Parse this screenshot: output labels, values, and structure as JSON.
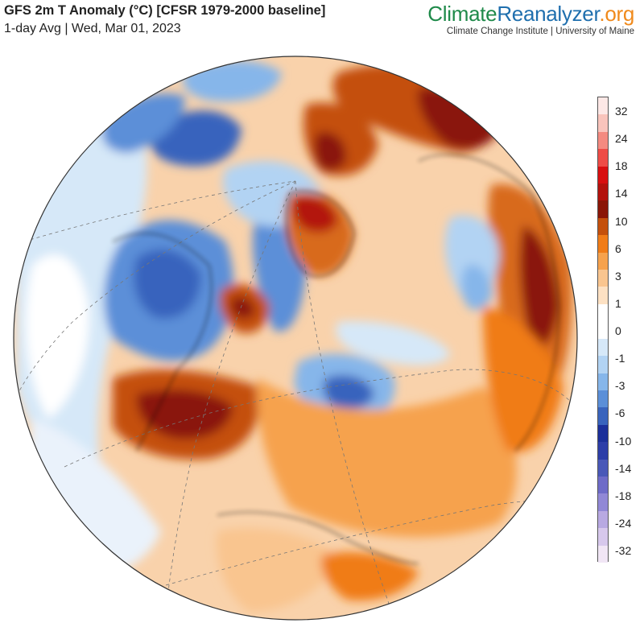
{
  "header": {
    "title": "GFS 2m T Anomaly (°C) [CFSR 1979-2000 baseline]",
    "subtitle": "1-day Avg | Wed, Mar 01, 2023"
  },
  "brand": {
    "logo_part1": "Climate",
    "logo_part2": "Reanalyzer",
    "logo_part3": ".org",
    "logo_colors": [
      "#1f8a4a",
      "#1f6fae",
      "#f08a1c"
    ],
    "tagline": "Climate Change Institute | University of Maine"
  },
  "colorbar": {
    "labels": [
      "32",
      "24",
      "18",
      "14",
      "10",
      "6",
      "3",
      "1",
      "0",
      "-1",
      "-3",
      "-6",
      "-10",
      "-14",
      "-18",
      "-24",
      "-32"
    ],
    "colors": [
      "#fde8e6",
      "#f9c4bc",
      "#f48a80",
      "#ee4c46",
      "#d80f10",
      "#b3120d",
      "#8a1607",
      "#c4500c",
      "#f07c18",
      "#f6a24d",
      "#f9c58f",
      "#fde1c3",
      "#ffffff",
      "#ffffff",
      "#d6e8f8",
      "#b2d3f3",
      "#86b6ea",
      "#5b8fd8",
      "#3964bd",
      "#1c309a",
      "#2d3ea8",
      "#4958b8",
      "#6e6bc8",
      "#9188d6",
      "#b8a9e2",
      "#d7c8ec",
      "#f1e6f5"
    ]
  },
  "map": {
    "projection": "orthographic",
    "anomaly_colors": {
      "strong_warm": "#8a1607",
      "warm": "#c4500c",
      "mild_warm": "#f07c18",
      "slight_warm": "#f9c58f",
      "neutral": "#ffffff",
      "slight_cold": "#b2d3f3",
      "cold": "#5b8fd8",
      "strong_cold": "#3964bd"
    }
  }
}
